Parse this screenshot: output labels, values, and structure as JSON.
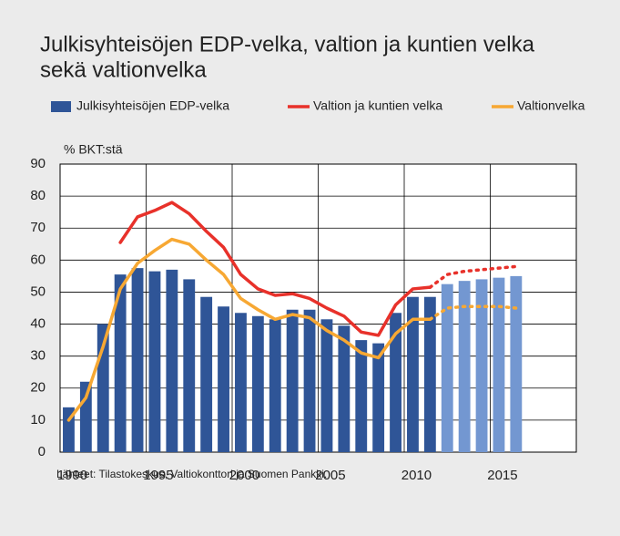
{
  "chart_data": {
    "type": "bar-line",
    "title": [
      "Julkisyhteisöjen EDP-velka, valtion ja kuntien velka",
      "sekä valtionvelka"
    ],
    "y_label": "% BKT:stä",
    "source": "Lähteet: Tilastokeskus, Valtiokonttori ja Suomen Pankki.",
    "x": [
      1990,
      1991,
      1992,
      1993,
      1994,
      1995,
      1996,
      1997,
      1998,
      1999,
      2000,
      2001,
      2002,
      2003,
      2004,
      2005,
      2006,
      2007,
      2008,
      2009,
      2010,
      2011,
      2012,
      2013,
      2014,
      2015,
      2016
    ],
    "xlim": [
      1989.5,
      2019.5
    ],
    "xticks": [
      1990,
      1995,
      2000,
      2005,
      2010,
      2015
    ],
    "ylim": [
      0,
      90
    ],
    "yticks": [
      0,
      10,
      20,
      30,
      40,
      50,
      60,
      70,
      80,
      90
    ],
    "grid": true,
    "series": [
      {
        "name": "Julkisyhteisöjen EDP-velka",
        "kind": "bar",
        "color": "#2f5597",
        "colors": [
          "#2f5597",
          "#2f5597",
          "#2f5597",
          "#2f5597",
          "#2f5597",
          "#2f5597",
          "#2f5597",
          "#2f5597",
          "#2f5597",
          "#2f5597",
          "#2f5597",
          "#2f5597",
          "#2f5597",
          "#2f5597",
          "#2f5597",
          "#2f5597",
          "#2f5597",
          "#2f5597",
          "#2f5597",
          "#2f5597",
          "#2f5597",
          "#2f5597",
          "#7397d1",
          "#7397d1",
          "#7397d1",
          "#7397d1",
          "#7397d1"
        ],
        "values": [
          14,
          22,
          40,
          55.5,
          57.5,
          56.5,
          57,
          54,
          48.5,
          45.5,
          43.5,
          42.5,
          41.5,
          44.5,
          44.5,
          41.5,
          39.5,
          35,
          34,
          43.5,
          48.5,
          48.5,
          52.5,
          53.5,
          54,
          54.5,
          55
        ]
      },
      {
        "name": "Valtion ja kuntien velka",
        "kind": "line",
        "color": "#e8312a",
        "dashed_from": 2011,
        "values": [
          null,
          null,
          null,
          65.5,
          73.5,
          75.5,
          78,
          74.5,
          69,
          64,
          55.5,
          51,
          49,
          49.5,
          48,
          45,
          42.5,
          37.5,
          36.5,
          46,
          51,
          51.5,
          55.5,
          56.5,
          57,
          57.5,
          58
        ]
      },
      {
        "name": "Valtionvelka",
        "kind": "line",
        "color": "#f7a833",
        "dashed_from": 2011,
        "values": [
          10,
          17,
          33,
          51,
          59,
          63,
          66.5,
          65,
          60,
          55.5,
          48,
          44.5,
          41.5,
          43,
          42,
          38,
          35,
          31,
          29.5,
          37,
          41.5,
          41.5,
          45,
          45.5,
          45.5,
          45.5,
          45
        ]
      }
    ]
  }
}
